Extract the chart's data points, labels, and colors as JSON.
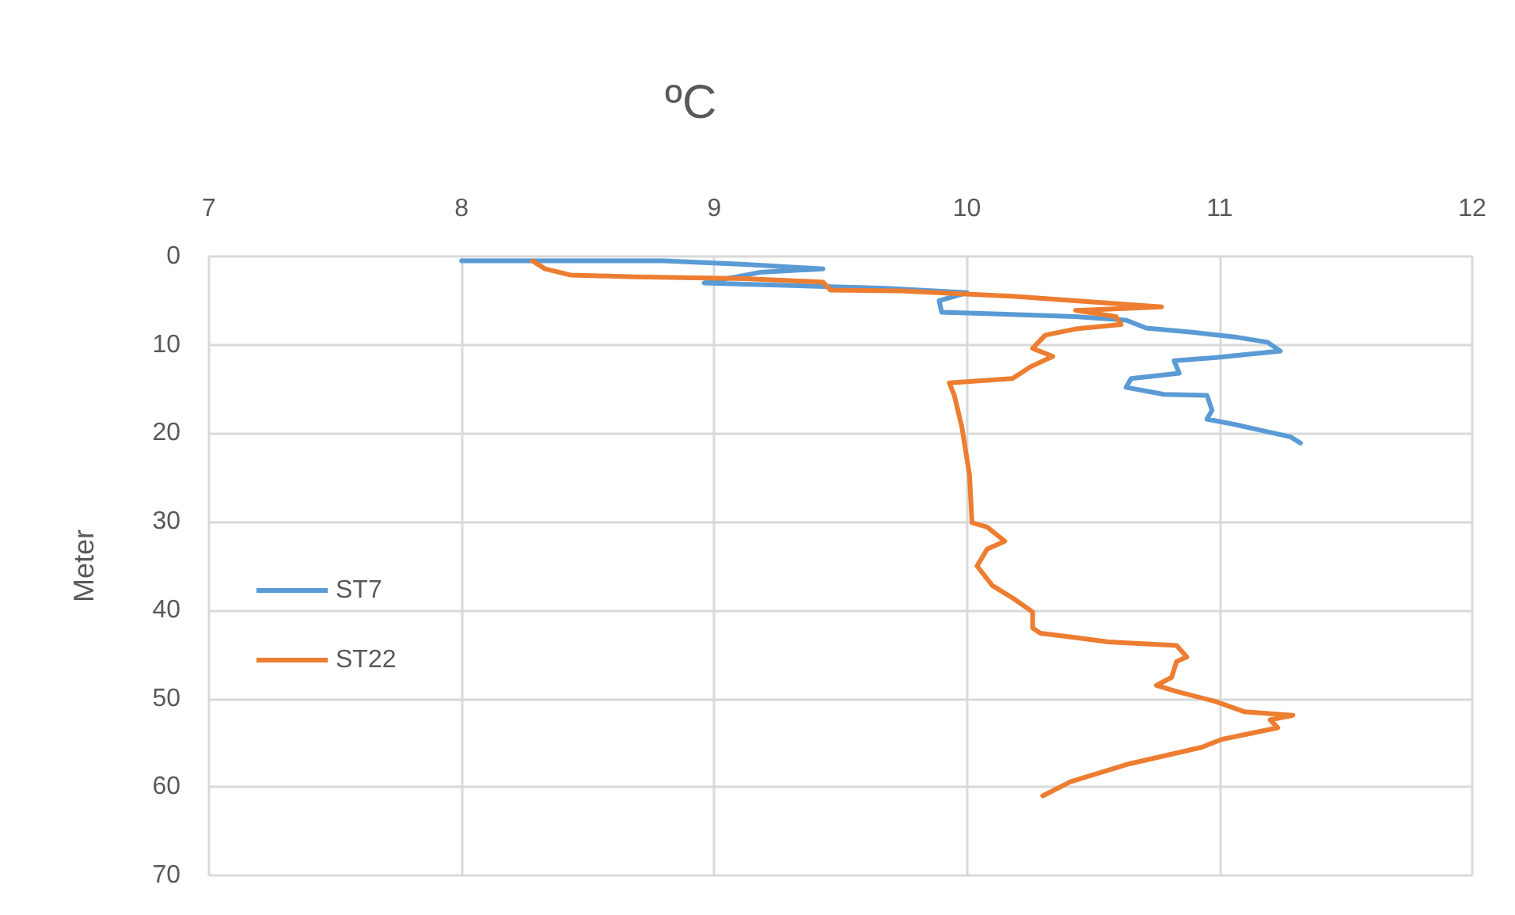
{
  "chart_data": {
    "type": "line",
    "title": "ºC",
    "ylabel": "Meter",
    "xlim": [
      7,
      12
    ],
    "xticks": [
      7,
      8,
      9,
      10,
      11,
      12
    ],
    "ylim": [
      70,
      0
    ],
    "yticks": [
      0,
      10,
      20,
      30,
      40,
      50,
      60,
      70
    ],
    "grid": true,
    "legend": "left",
    "marker": "none",
    "line_style": "solid",
    "series": [
      {
        "name": "ST7",
        "color": "#5b9bd5",
        "x": [
          8.0,
          8.8,
          9.12,
          9.43,
          9.18,
          8.96,
          9.68,
          10.0,
          9.89,
          9.9,
          10.43,
          10.63,
          10.71,
          10.9,
          11.06,
          11.19,
          11.24,
          11.0,
          10.82,
          10.84,
          10.65,
          10.63,
          10.78,
          10.95,
          10.97,
          10.95,
          11.06,
          11.17,
          11.28,
          11.32
        ],
        "values": [
          0.5,
          0.5,
          0.9,
          1.4,
          1.8,
          3.0,
          3.6,
          4.1,
          5.0,
          6.3,
          6.8,
          7.2,
          8.1,
          8.6,
          9.1,
          9.7,
          10.7,
          11.4,
          11.8,
          13.2,
          13.8,
          14.8,
          15.6,
          15.7,
          17.4,
          18.4,
          19.0,
          19.7,
          20.4,
          21.1
        ]
      },
      {
        "name": "ST22",
        "color": "#ed7d31",
        "x": [
          8.28,
          8.33,
          8.43,
          8.68,
          9.12,
          9.43,
          9.46,
          9.74,
          10.18,
          10.77,
          10.43,
          10.59,
          10.61,
          10.43,
          10.31,
          10.26,
          10.34,
          10.25,
          10.18,
          9.93,
          9.95,
          9.98,
          9.99,
          10.01,
          10.02,
          10.08,
          10.15,
          10.08,
          10.04,
          10.1,
          10.18,
          10.26,
          10.26,
          10.29,
          10.43,
          10.56,
          10.83,
          10.87,
          10.83,
          10.81,
          10.75,
          10.83,
          10.98,
          11.1,
          11.29,
          11.2,
          11.23,
          11.01,
          10.93,
          10.64,
          10.41,
          10.3
        ],
        "values": [
          0.5,
          1.4,
          2.1,
          2.3,
          2.5,
          2.9,
          3.8,
          3.9,
          4.5,
          5.7,
          6.1,
          6.8,
          7.7,
          8.2,
          8.9,
          10.4,
          11.3,
          12.5,
          13.8,
          14.3,
          15.7,
          19.3,
          21.1,
          24.7,
          30.1,
          30.6,
          32.2,
          33.1,
          35.0,
          37.2,
          38.6,
          40.2,
          42.0,
          42.6,
          43.1,
          43.6,
          44.0,
          45.3,
          45.8,
          47.6,
          48.5,
          49.2,
          50.3,
          51.5,
          51.9,
          52.4,
          53.3,
          54.6,
          55.5,
          57.4,
          59.4,
          61.0
        ]
      }
    ]
  }
}
